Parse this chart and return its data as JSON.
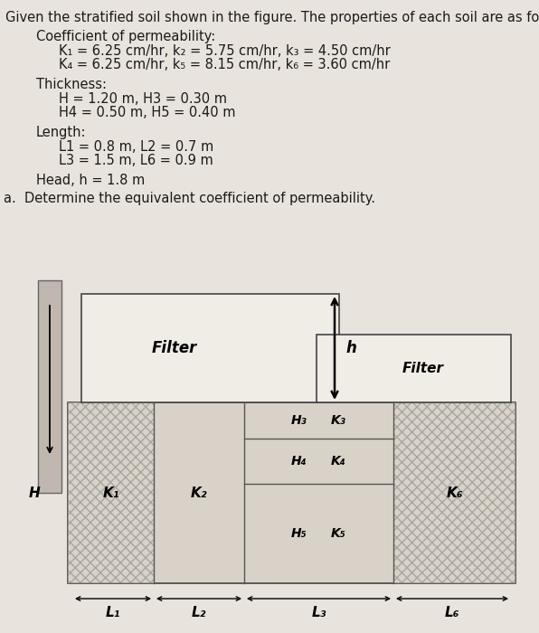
{
  "bg_color": "#cbc5bc",
  "page_color": "#e8e3dc",
  "text_color": "#1a1a1a",
  "title_line": "Given the stratified soil shown in the figure. The properties of each soil are as follow",
  "coeff_header": "Coefficient of permeability:",
  "coeff_line1": "K₁ = 6.25 cm/hr, k₂ = 5.75 cm/hr, k₃ = 4.50 cm/hr",
  "coeff_line2": "K₄ = 6.25 cm/hr, k₅ = 8.15 cm/hr, k₆ = 3.60 cm/hr",
  "thick_header": "Thickness:",
  "thick_line1": "H = 1.20 m, H3 = 0.30 m",
  "thick_line2": "H4 = 0.50 m, H5 = 0.40 m",
  "len_header": "Length:",
  "len_line1": "L1 = 0.8 m, L2 = 0.7 m",
  "len_line2": "L3 = 1.5 m, L6 = 0.9 m",
  "head_line": "Head, h = 1.8 m",
  "question": "a.  Determine the equivalent coefficient of permeability.",
  "filter_color": "#f0ece6",
  "soil_color": "#d8d2c8",
  "hatch_color": "#b8b0a4"
}
